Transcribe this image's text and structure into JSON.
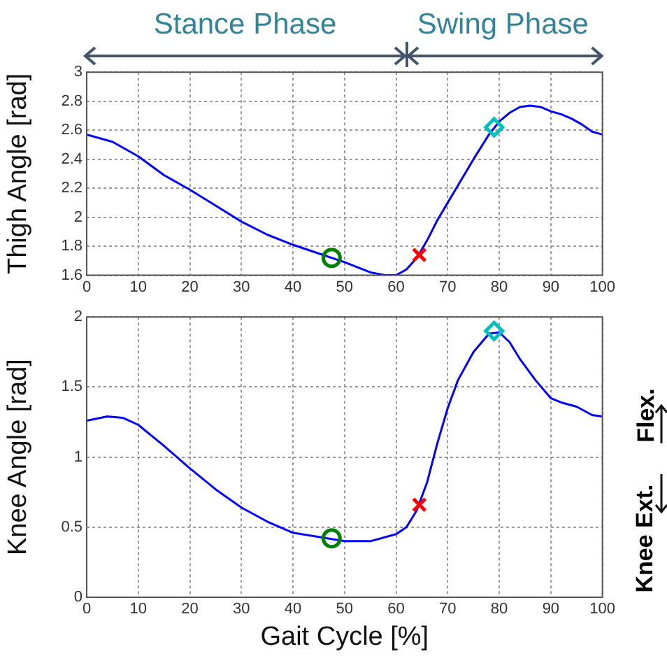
{
  "chart_data": [
    {
      "type": "line",
      "ylabel": "Thigh Angle [rad]",
      "annotations": [
        "Stance Phase",
        "Swing Phase"
      ],
      "xlim": [
        0,
        100
      ],
      "xticks": [
        0,
        10,
        20,
        30,
        40,
        50,
        60,
        70,
        80,
        90,
        100
      ],
      "ylim": [
        1.6,
        3
      ],
      "yticks": [
        1.6,
        1.8,
        2,
        2.2,
        2.4,
        2.6,
        2.8,
        3
      ],
      "grid": true,
      "series": [
        {
          "color": "#0000ff",
          "line_style": "solid",
          "marker": "none",
          "x": [
            0,
            5,
            10,
            15,
            20,
            25,
            30,
            35,
            40,
            45,
            50,
            55,
            58,
            60,
            62,
            64,
            66,
            68,
            70,
            72,
            75,
            78,
            80,
            82,
            84,
            86,
            88,
            90,
            92,
            94,
            96,
            98,
            100
          ],
          "values": [
            2.57,
            2.52,
            2.42,
            2.29,
            2.19,
            2.08,
            1.97,
            1.88,
            1.81,
            1.75,
            1.69,
            1.62,
            1.6,
            1.6,
            1.64,
            1.72,
            1.84,
            1.98,
            2.1,
            2.22,
            2.4,
            2.57,
            2.66,
            2.72,
            2.76,
            2.77,
            2.76,
            2.73,
            2.71,
            2.68,
            2.64,
            2.59,
            2.57
          ]
        },
        {
          "type": "scatter",
          "color": "#008000",
          "marker": "circle",
          "x": [
            47.5
          ],
          "values": [
            1.72
          ]
        },
        {
          "type": "scatter",
          "color": "#ff0000",
          "marker": "cross",
          "x": [
            64.5
          ],
          "values": [
            1.74
          ]
        },
        {
          "type": "scatter",
          "color": "#00bfbf",
          "marker": "diamond",
          "x": [
            79
          ],
          "values": [
            2.62
          ]
        }
      ]
    },
    {
      "type": "line",
      "xlabel": "Gait Cycle [%]",
      "ylabel": "Knee Angle [rad]",
      "annotations": [
        "Flex.",
        "Knee Ext."
      ],
      "xlim": [
        0,
        100
      ],
      "xticks": [
        0,
        10,
        20,
        30,
        40,
        50,
        60,
        70,
        80,
        90,
        100
      ],
      "ylim": [
        0,
        2
      ],
      "yticks": [
        0,
        0.5,
        1,
        1.5,
        2
      ],
      "grid": true,
      "series": [
        {
          "color": "#0000ff",
          "line_style": "solid",
          "marker": "none",
          "x": [
            0,
            4,
            7,
            10,
            15,
            20,
            25,
            30,
            35,
            40,
            45,
            50,
            55,
            60,
            62,
            64,
            66,
            68,
            70,
            72,
            75,
            78,
            80,
            82,
            84,
            87,
            90,
            92,
            95,
            98,
            100
          ],
          "values": [
            1.26,
            1.29,
            1.28,
            1.23,
            1.08,
            0.92,
            0.77,
            0.64,
            0.54,
            0.46,
            0.43,
            0.4,
            0.4,
            0.45,
            0.5,
            0.62,
            0.82,
            1.1,
            1.35,
            1.55,
            1.75,
            1.88,
            1.89,
            1.82,
            1.7,
            1.55,
            1.42,
            1.39,
            1.36,
            1.3,
            1.29
          ]
        },
        {
          "type": "scatter",
          "color": "#008000",
          "marker": "circle",
          "x": [
            47.5
          ],
          "values": [
            0.42
          ]
        },
        {
          "type": "scatter",
          "color": "#ff0000",
          "marker": "cross",
          "x": [
            64.5
          ],
          "values": [
            0.66
          ]
        },
        {
          "type": "scatter",
          "color": "#00bfbf",
          "marker": "diamond",
          "x": [
            79
          ],
          "values": [
            1.9
          ]
        }
      ]
    }
  ]
}
